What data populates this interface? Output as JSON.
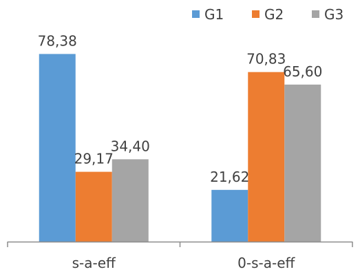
{
  "chart_data": {
    "type": "bar",
    "categories": [
      "s-a-eff",
      "0-s-a-eff"
    ],
    "series": [
      {
        "name": "G1",
        "values": [
          78.38,
          21.62
        ],
        "labels": [
          "78,38",
          "21,62"
        ],
        "color": "#5b9bd5"
      },
      {
        "name": "G2",
        "values": [
          29.17,
          70.83
        ],
        "labels": [
          "29,17",
          "70,83"
        ],
        "color": "#ed7d31"
      },
      {
        "name": "G3",
        "values": [
          34.4,
          65.6
        ],
        "labels": [
          "34,40",
          "65,60"
        ],
        "color": "#a5a5a5"
      }
    ],
    "ylim": [
      0,
      90
    ],
    "grid": false,
    "legend_position": "top-right",
    "axis_color": "#8c8c8c"
  }
}
